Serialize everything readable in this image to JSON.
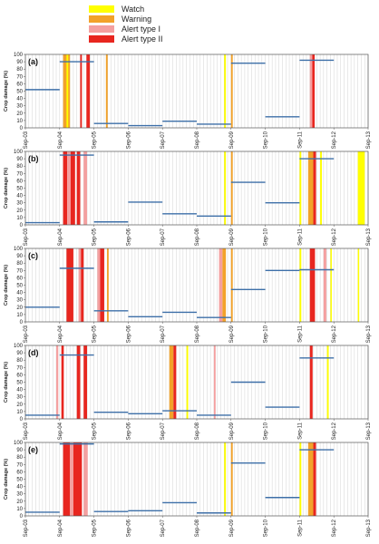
{
  "chart_data": {
    "type": "bar",
    "legend": [
      {
        "label": "Watch",
        "color": "#ffff00"
      },
      {
        "label": "Warning",
        "color": "#f2a22a"
      },
      {
        "label": "Alert type I",
        "color": "#f4a0a0"
      },
      {
        "label": "Alert type II",
        "color": "#e8261f"
      }
    ],
    "ylabel": "Crop damage (%)",
    "ylim": [
      0,
      100
    ],
    "yticks": [
      0,
      10,
      20,
      30,
      40,
      50,
      60,
      70,
      80,
      90,
      100
    ],
    "x_ticks": [
      "Sep-03",
      "Sep-04",
      "Sep-05",
      "Sep-06",
      "Sep-07",
      "Sep-08",
      "Sep-09",
      "Sep-10",
      "Sep-11",
      "Sep-12",
      "Sep-13"
    ],
    "day_range": [
      3,
      13
    ],
    "gridlines_per_day": 10,
    "panels": [
      {
        "label": "(a)",
        "bands": [
          {
            "start": 4.1,
            "end": 4.3,
            "color": "#f2a22a"
          },
          {
            "start": 4.2,
            "end": 4.25,
            "color": "#ffff00"
          },
          {
            "start": 4.6,
            "end": 4.65,
            "color": "#e8261f"
          },
          {
            "start": 4.78,
            "end": 4.88,
            "color": "#e8261f"
          },
          {
            "start": 5.35,
            "end": 5.4,
            "color": "#f2a22a"
          },
          {
            "start": 8.8,
            "end": 8.85,
            "color": "#ffff00"
          },
          {
            "start": 9.0,
            "end": 9.05,
            "color": "#f2a22a"
          },
          {
            "start": 11.3,
            "end": 11.37,
            "color": "#f4a0a0"
          },
          {
            "start": 11.37,
            "end": 11.44,
            "color": "#e8261f"
          }
        ],
        "damage": [
          {
            "start": 3.0,
            "end": 4.0,
            "value": 52
          },
          {
            "start": 4.0,
            "end": 5.0,
            "value": 90
          },
          {
            "start": 5.0,
            "end": 6.0,
            "value": 6
          },
          {
            "start": 6.0,
            "end": 7.0,
            "value": 3
          },
          {
            "start": 7.0,
            "end": 8.0,
            "value": 9
          },
          {
            "start": 8.0,
            "end": 9.0,
            "value": 5
          },
          {
            "start": 9.0,
            "end": 10.0,
            "value": 88
          },
          {
            "start": 10.0,
            "end": 11.0,
            "value": 15
          },
          {
            "start": 11.0,
            "end": 12.0,
            "value": 92
          }
        ]
      },
      {
        "label": "(b)",
        "bands": [
          {
            "start": 4.1,
            "end": 4.22,
            "color": "#e8261f"
          },
          {
            "start": 4.22,
            "end": 4.32,
            "color": "#f4a0a0"
          },
          {
            "start": 4.32,
            "end": 4.45,
            "color": "#e8261f"
          },
          {
            "start": 4.5,
            "end": 4.6,
            "color": "#e8261f"
          },
          {
            "start": 4.7,
            "end": 4.8,
            "color": "#f4a0a0"
          },
          {
            "start": 8.8,
            "end": 8.85,
            "color": "#ffff00"
          },
          {
            "start": 9.0,
            "end": 9.05,
            "color": "#f2a22a"
          },
          {
            "start": 11.0,
            "end": 11.05,
            "color": "#ffff00"
          },
          {
            "start": 11.25,
            "end": 11.4,
            "color": "#f2a22a"
          },
          {
            "start": 11.4,
            "end": 11.48,
            "color": "#e8261f"
          },
          {
            "start": 11.6,
            "end": 11.65,
            "color": "#ffff00"
          },
          {
            "start": 12.7,
            "end": 12.9,
            "color": "#ffff00"
          }
        ],
        "damage": [
          {
            "start": 3.0,
            "end": 4.0,
            "value": 3
          },
          {
            "start": 4.0,
            "end": 5.0,
            "value": 95
          },
          {
            "start": 5.0,
            "end": 6.0,
            "value": 4
          },
          {
            "start": 6.0,
            "end": 7.0,
            "value": 31
          },
          {
            "start": 7.0,
            "end": 8.0,
            "value": 15
          },
          {
            "start": 8.0,
            "end": 9.0,
            "value": 12
          },
          {
            "start": 9.0,
            "end": 10.0,
            "value": 58
          },
          {
            "start": 10.0,
            "end": 11.0,
            "value": 30
          },
          {
            "start": 11.0,
            "end": 12.0,
            "value": 90
          }
        ]
      },
      {
        "label": "(c)",
        "bands": [
          {
            "start": 4.2,
            "end": 4.4,
            "color": "#e8261f"
          },
          {
            "start": 4.55,
            "end": 4.62,
            "color": "#f4a0a0"
          },
          {
            "start": 4.62,
            "end": 4.7,
            "color": "#e8261f"
          },
          {
            "start": 5.1,
            "end": 5.18,
            "color": "#f4a0a0"
          },
          {
            "start": 5.18,
            "end": 5.3,
            "color": "#e8261f"
          },
          {
            "start": 5.38,
            "end": 5.43,
            "color": "#f2a22a"
          },
          {
            "start": 8.65,
            "end": 8.75,
            "color": "#f4a0a0"
          },
          {
            "start": 8.75,
            "end": 8.85,
            "color": "#f2a22a"
          },
          {
            "start": 9.0,
            "end": 9.05,
            "color": "#f2a22a"
          },
          {
            "start": 11.0,
            "end": 11.05,
            "color": "#ffff00"
          },
          {
            "start": 11.3,
            "end": 11.45,
            "color": "#e8261f"
          },
          {
            "start": 11.7,
            "end": 11.78,
            "color": "#f4a0a0"
          },
          {
            "start": 11.9,
            "end": 11.94,
            "color": "#ffff00"
          },
          {
            "start": 12.7,
            "end": 12.74,
            "color": "#ffff00"
          }
        ],
        "damage": [
          {
            "start": 3.0,
            "end": 4.0,
            "value": 20
          },
          {
            "start": 4.0,
            "end": 5.0,
            "value": 73
          },
          {
            "start": 5.0,
            "end": 6.0,
            "value": 15
          },
          {
            "start": 6.0,
            "end": 7.0,
            "value": 7
          },
          {
            "start": 7.0,
            "end": 8.0,
            "value": 13
          },
          {
            "start": 8.0,
            "end": 9.0,
            "value": 6
          },
          {
            "start": 9.0,
            "end": 10.0,
            "value": 44
          },
          {
            "start": 10.0,
            "end": 11.0,
            "value": 70
          },
          {
            "start": 11.0,
            "end": 12.0,
            "value": 71
          }
        ]
      },
      {
        "label": "(d)",
        "bands": [
          {
            "start": 3.9,
            "end": 3.96,
            "color": "#f4a0a0"
          },
          {
            "start": 4.05,
            "end": 4.12,
            "color": "#e8261f"
          },
          {
            "start": 4.5,
            "end": 4.6,
            "color": "#e8261f"
          },
          {
            "start": 4.7,
            "end": 4.8,
            "color": "#e8261f"
          },
          {
            "start": 7.2,
            "end": 7.32,
            "color": "#f2a22a"
          },
          {
            "start": 7.32,
            "end": 7.4,
            "color": "#e8261f"
          },
          {
            "start": 7.7,
            "end": 7.75,
            "color": "#ffff00"
          },
          {
            "start": 8.5,
            "end": 8.55,
            "color": "#f4a0a0"
          },
          {
            "start": 11.3,
            "end": 11.38,
            "color": "#e8261f"
          },
          {
            "start": 11.8,
            "end": 11.85,
            "color": "#ffff00"
          }
        ],
        "damage": [
          {
            "start": 3.0,
            "end": 4.0,
            "value": 5
          },
          {
            "start": 4.0,
            "end": 5.0,
            "value": 87
          },
          {
            "start": 5.0,
            "end": 6.0,
            "value": 9
          },
          {
            "start": 6.0,
            "end": 7.0,
            "value": 7
          },
          {
            "start": 7.0,
            "end": 8.0,
            "value": 11
          },
          {
            "start": 8.0,
            "end": 9.0,
            "value": 5
          },
          {
            "start": 9.0,
            "end": 10.0,
            "value": 50
          },
          {
            "start": 10.0,
            "end": 11.0,
            "value": 16
          },
          {
            "start": 11.0,
            "end": 12.0,
            "value": 83
          }
        ]
      },
      {
        "label": "(e)",
        "bands": [
          {
            "start": 4.1,
            "end": 4.3,
            "color": "#e8261f"
          },
          {
            "start": 4.3,
            "end": 4.4,
            "color": "#f4a0a0"
          },
          {
            "start": 4.4,
            "end": 4.65,
            "color": "#e8261f"
          },
          {
            "start": 4.7,
            "end": 4.82,
            "color": "#f4a0a0"
          },
          {
            "start": 8.8,
            "end": 8.85,
            "color": "#ffff00"
          },
          {
            "start": 9.0,
            "end": 9.05,
            "color": "#f2a22a"
          },
          {
            "start": 11.0,
            "end": 11.05,
            "color": "#ffff00"
          },
          {
            "start": 11.25,
            "end": 11.4,
            "color": "#f2a22a"
          },
          {
            "start": 11.4,
            "end": 11.48,
            "color": "#e8261f"
          }
        ],
        "damage": [
          {
            "start": 3.0,
            "end": 4.0,
            "value": 5
          },
          {
            "start": 4.0,
            "end": 5.0,
            "value": 98
          },
          {
            "start": 5.0,
            "end": 6.0,
            "value": 6
          },
          {
            "start": 6.0,
            "end": 7.0,
            "value": 7
          },
          {
            "start": 7.0,
            "end": 8.0,
            "value": 18
          },
          {
            "start": 8.0,
            "end": 9.0,
            "value": 4
          },
          {
            "start": 9.0,
            "end": 10.0,
            "value": 72
          },
          {
            "start": 10.0,
            "end": 11.0,
            "value": 25
          },
          {
            "start": 11.0,
            "end": 12.0,
            "value": 90
          }
        ]
      }
    ],
    "damage_line_color": "#3d6fa8",
    "grid": true
  }
}
